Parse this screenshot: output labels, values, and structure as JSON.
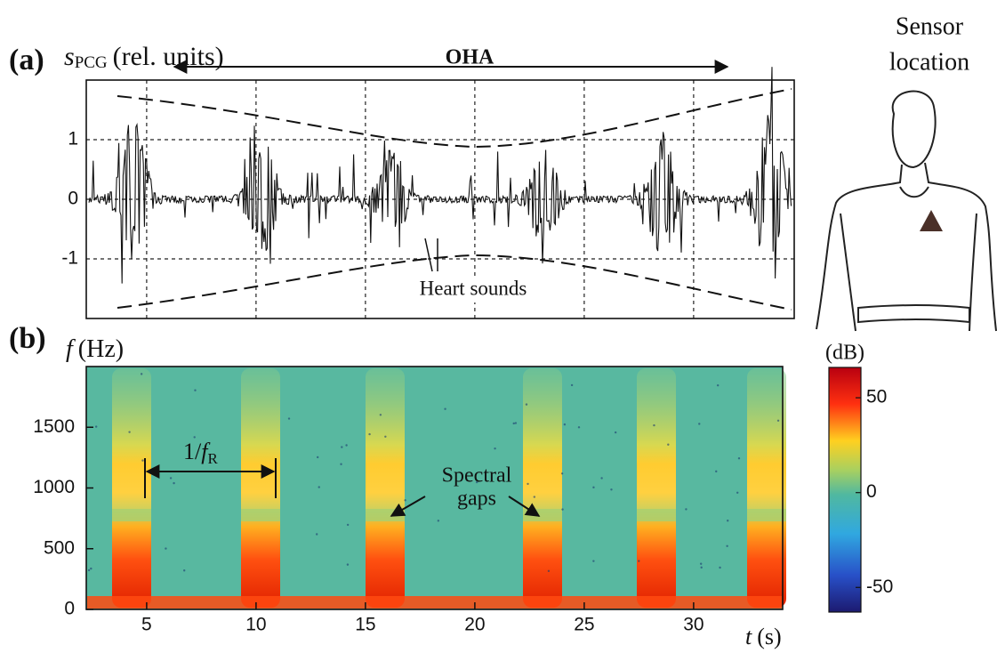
{
  "panel_a": {
    "label": "(a)",
    "y_label": {
      "symbol": "s",
      "subscript": "PCG",
      "unit": "(rel. units)"
    },
    "title": "OHA",
    "annotation": "Heart sounds",
    "ylim": [
      -2,
      2
    ],
    "yticks": [
      -1,
      0,
      1
    ]
  },
  "sensor": {
    "title_lines": [
      "Sensor",
      "location"
    ]
  },
  "panel_b": {
    "label": "(b)",
    "y_label": {
      "symbol": "f",
      "unit": "(Hz)"
    },
    "x_label": {
      "symbol": "t",
      "unit": "(s)"
    },
    "xlim": [
      2.24,
      34.07
    ],
    "xticks": [
      5,
      10,
      15,
      20,
      25,
      30
    ],
    "ylim": [
      0,
      2000
    ],
    "yticks": [
      0,
      500,
      1000,
      1500
    ],
    "period_label": {
      "prefix": "1/",
      "symbol": "f",
      "subscript": "R"
    },
    "gap_label_lines": [
      "Spectral",
      "gaps"
    ]
  },
  "colorbar": {
    "label": "(dB)",
    "clim": [
      -63,
      66
    ],
    "ticks": [
      -50,
      0,
      50
    ]
  }
}
